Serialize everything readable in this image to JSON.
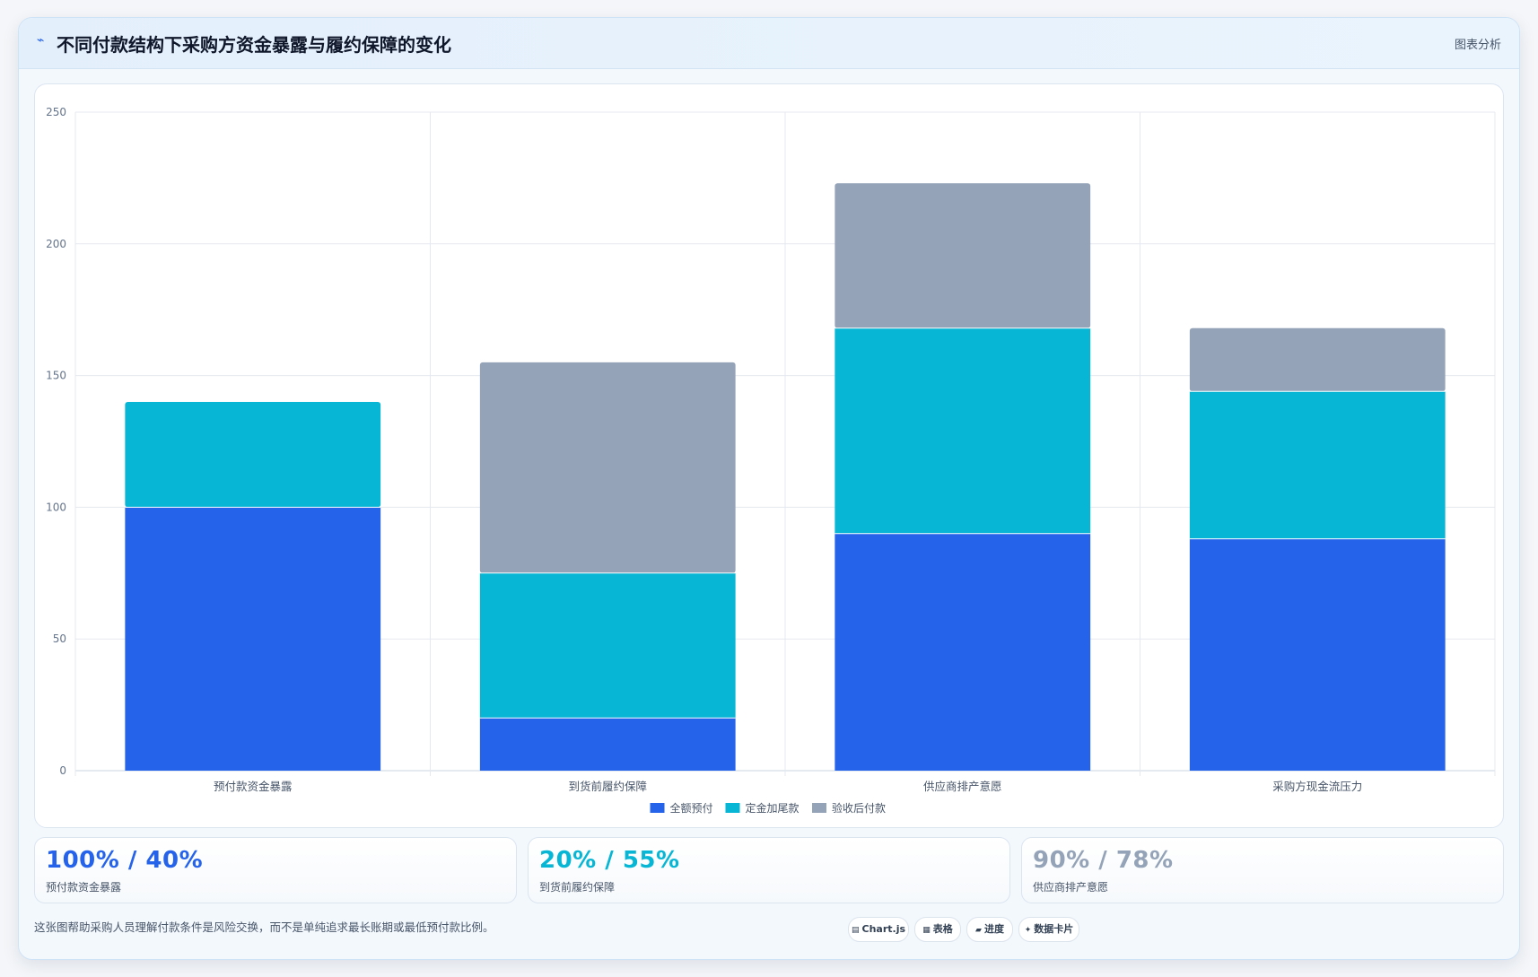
{
  "header": {
    "icon": "trend-line-icon",
    "title": "不同付款结构下采购方资金暴露与履约保障的变化",
    "action_label": "图表分析"
  },
  "chart_data": {
    "type": "bar",
    "stacked": true,
    "categories": [
      "预付款资金暴露",
      "到货前履约保障",
      "供应商排产意愿",
      "采购方现金流压力"
    ],
    "series": [
      {
        "name": "全额预付",
        "color": "#2563eb",
        "values": [
          100,
          20,
          90,
          88
        ]
      },
      {
        "name": "定金加尾款",
        "color": "#06b6d4",
        "values": [
          40,
          55,
          78,
          56
        ]
      },
      {
        "name": "验收后付款",
        "color": "#94a3b8",
        "values": [
          0,
          80,
          55,
          24
        ]
      }
    ],
    "ylim": [
      0,
      250
    ],
    "yticks": [
      0,
      50,
      100,
      150,
      200,
      250
    ],
    "grid": true,
    "legend_position": "bottom-center"
  },
  "stats": [
    {
      "value": "100% / 40%",
      "label": "预付款资金暴露",
      "color": "#2563eb"
    },
    {
      "value": "20% / 55%",
      "label": "到货前履约保障",
      "color": "#06b6d4"
    },
    {
      "value": "90% / 78%",
      "label": "供应商排产意愿",
      "color": "#94a3b8"
    }
  ],
  "footer": {
    "note": "这张图帮助采购人员理解付款条件是风险交换，而不是单纯追求最长账期或最低预付款比例。",
    "tags": [
      {
        "icon": "chart-icon",
        "label": "Chart.js"
      },
      {
        "icon": "table-icon",
        "label": "表格"
      },
      {
        "icon": "progress-icon",
        "label": "进度"
      },
      {
        "icon": "card-icon",
        "label": "数据卡片"
      }
    ]
  }
}
